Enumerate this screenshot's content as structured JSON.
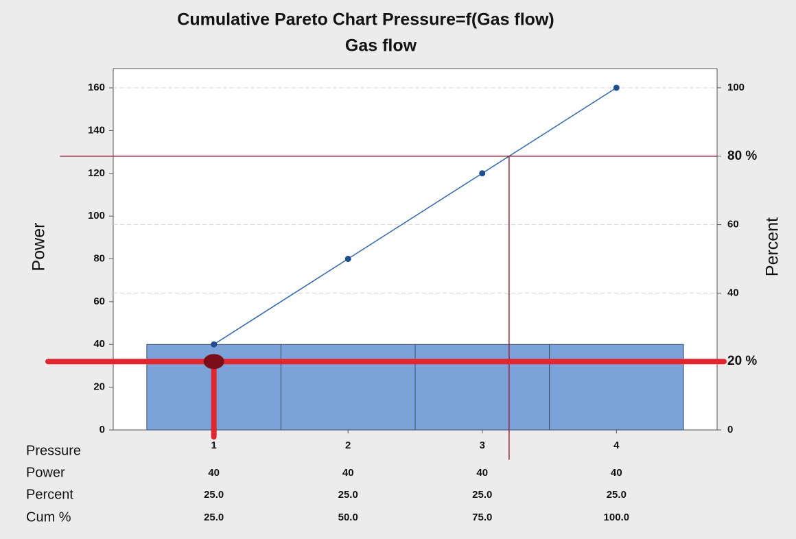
{
  "chart_data": {
    "type": "pareto",
    "title": "Cumulative Pareto Chart Pressure=f(Gas flow)",
    "subtitle": "Gas flow",
    "xlabel": "Pressure",
    "ylabel": "Power",
    "y2label": "Percent",
    "categories": [
      "1",
      "2",
      "3",
      "4"
    ],
    "series": [
      {
        "name": "Power",
        "kind": "bar",
        "color": "#7ba3d9",
        "edge": "#3d4f66",
        "values": [
          40,
          40,
          40,
          40
        ]
      },
      {
        "name": "Percent",
        "kind": "table",
        "values": [
          25,
          25,
          25,
          25
        ],
        "value_labels": [
          "25.0",
          "25.0",
          "25.0",
          "25.0"
        ]
      },
      {
        "name": "Cum %",
        "kind": "line",
        "axis": "y2",
        "color": "#3a6fb0",
        "values": [
          25,
          50,
          75,
          100
        ],
        "value_labels": [
          "25.0",
          "50.0",
          "75.0",
          "100.0"
        ]
      }
    ],
    "ylim": [
      0,
      169
    ],
    "yticks": [
      0,
      20,
      40,
      60,
      80,
      100,
      120,
      140,
      160
    ],
    "y2lim": [
      0,
      105.6
    ],
    "y2ticks": [
      0,
      {
        "value": 20,
        "label": "20 %"
      },
      40,
      60,
      {
        "value": 80,
        "label": "80 %"
      },
      100
    ],
    "grid": true,
    "reference_lines": [
      {
        "axis": "y2",
        "value": 80,
        "x": 3.2,
        "color": "#9b2335",
        "width": 1.5
      },
      {
        "axis": "y2",
        "value": 20,
        "x": 1,
        "color": "#e0262f",
        "width": 8,
        "marker": "#7a0f1a"
      }
    ]
  }
}
